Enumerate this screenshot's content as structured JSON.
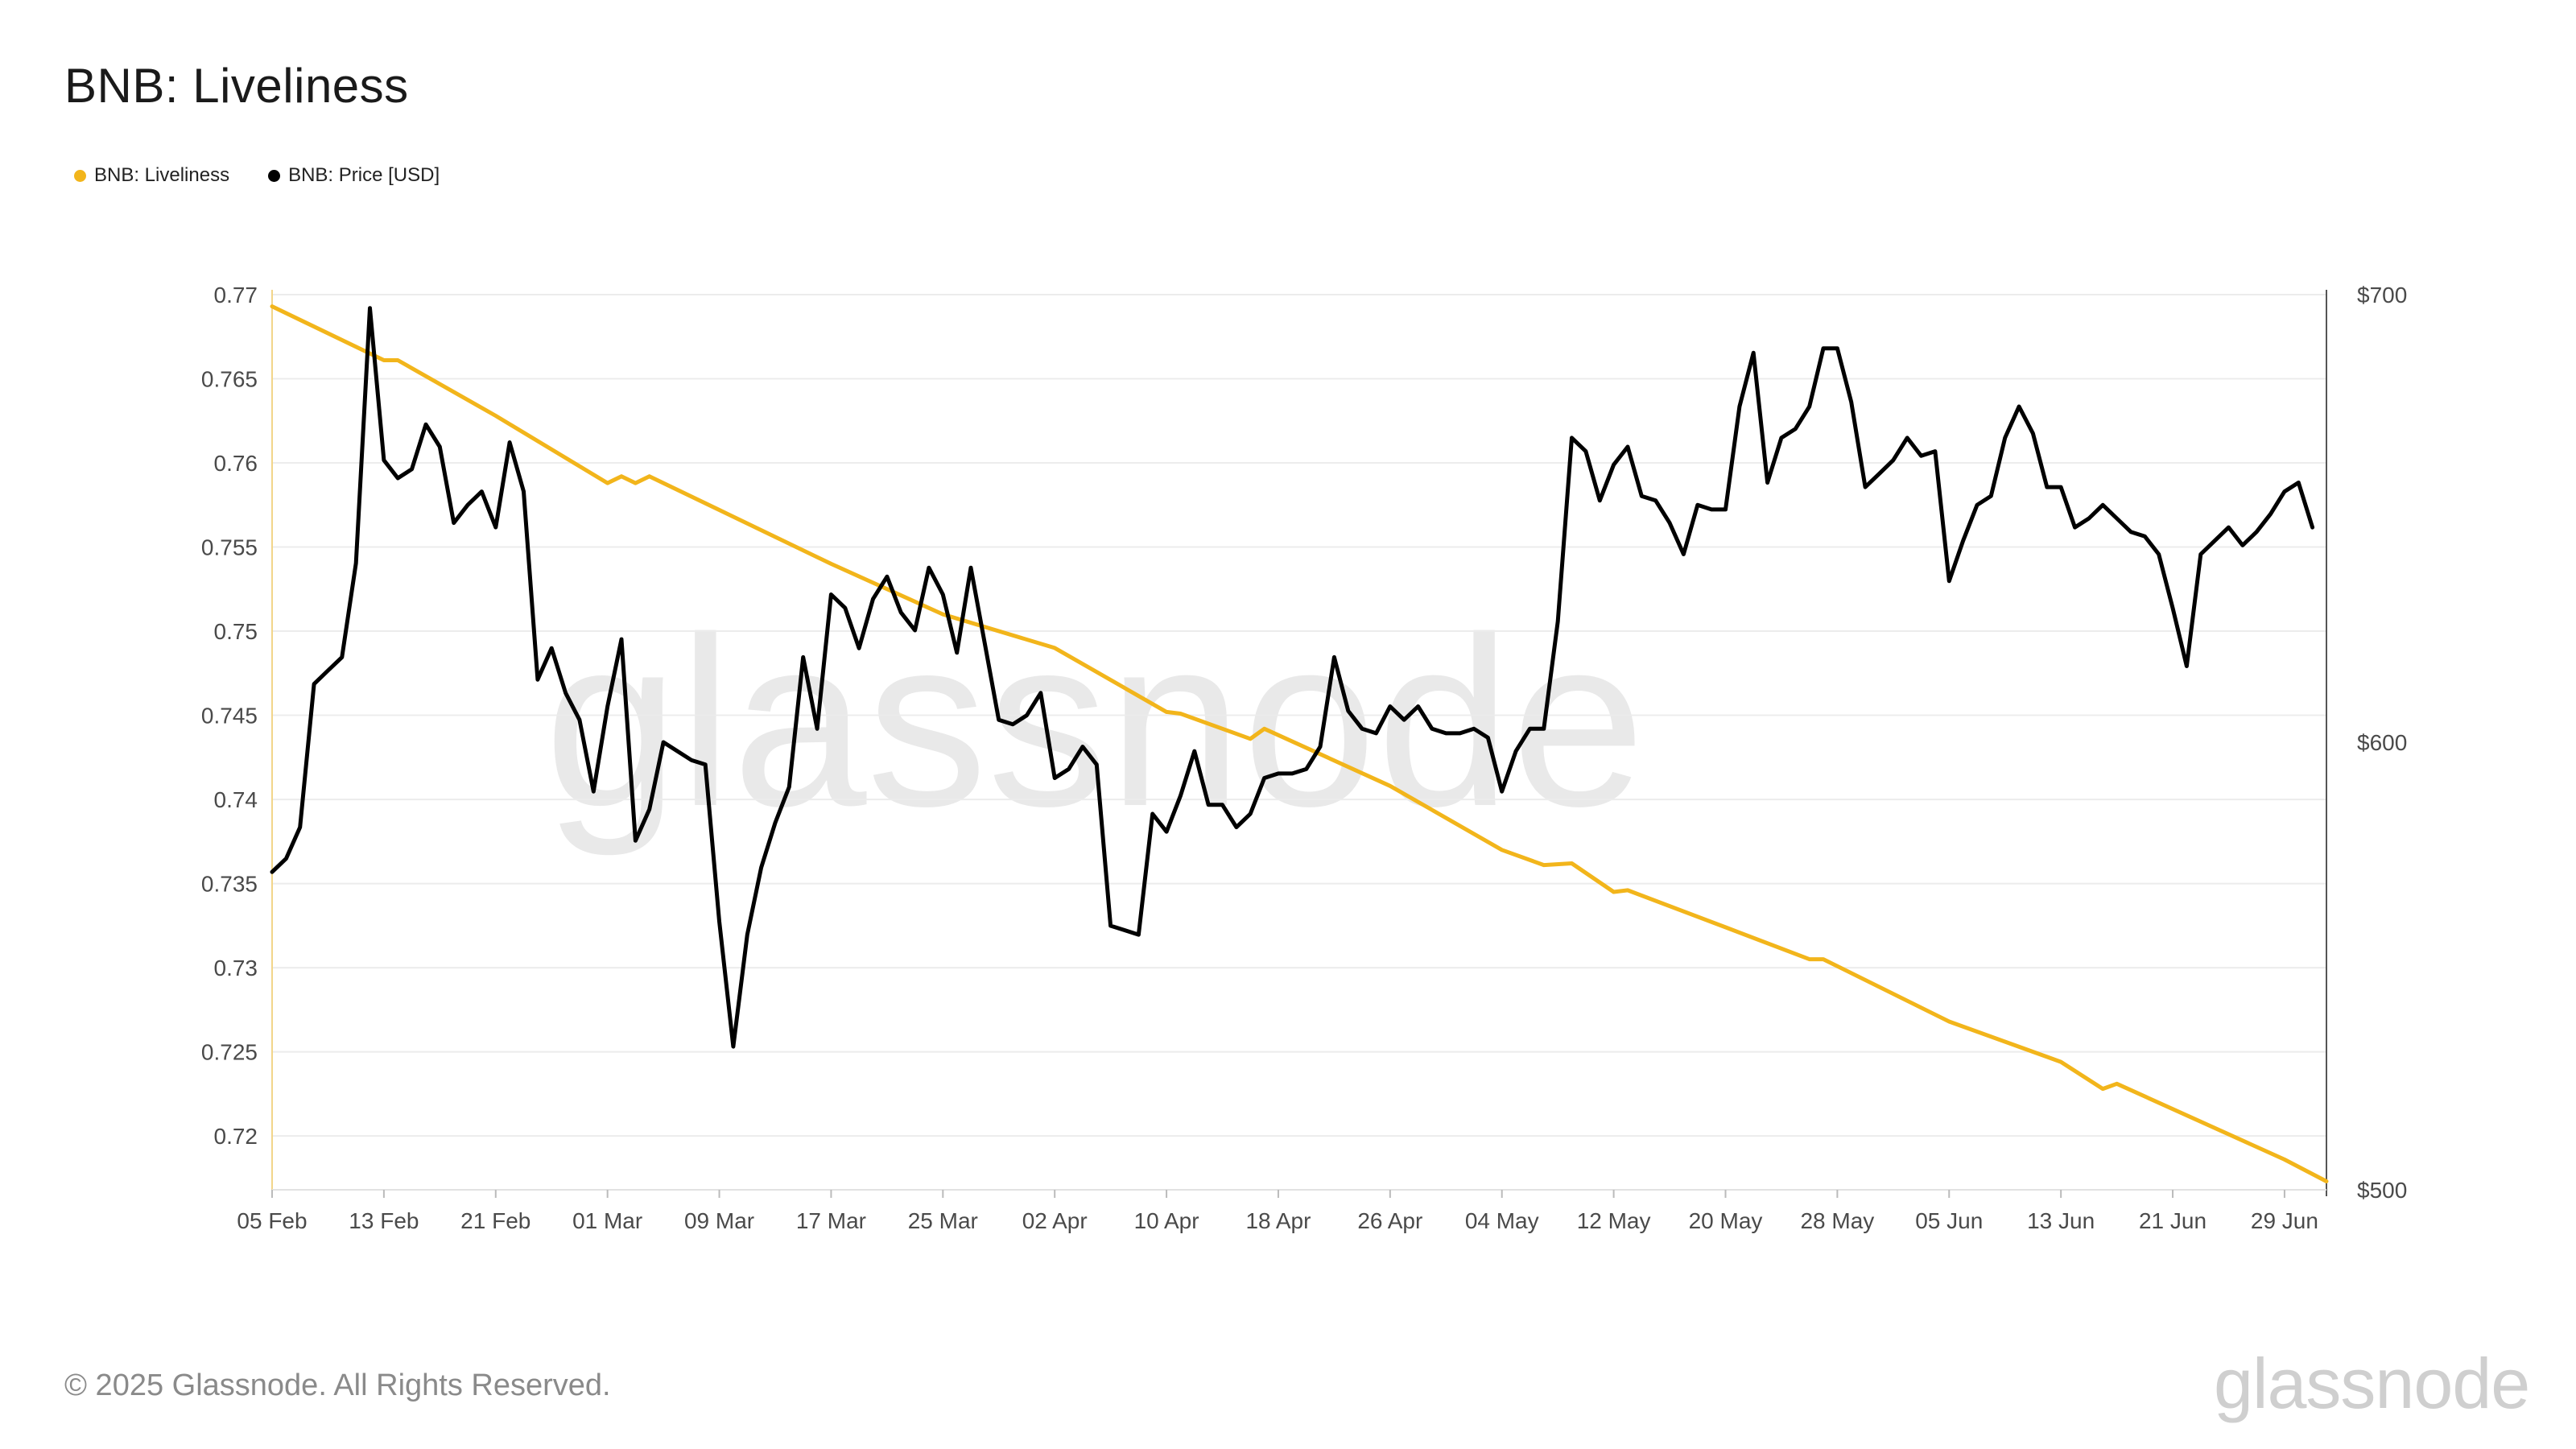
{
  "chart_data": {
    "type": "line",
    "title": "BNB: Liveliness",
    "legend": [
      "BNB: Liveliness",
      "BNB: Price [USD]"
    ],
    "colors": {
      "liveliness": "#f2b51b",
      "price": "#000000",
      "grid": "#ececec",
      "axis_text": "#4a4a4a"
    },
    "x_tick_labels": [
      "05 Feb",
      "13 Feb",
      "21 Feb",
      "01 Mar",
      "09 Mar",
      "17 Mar",
      "25 Mar",
      "02 Apr",
      "10 Apr",
      "18 Apr",
      "26 Apr",
      "04 May",
      "12 May",
      "20 May",
      "28 May",
      "05 Jun",
      "13 Jun",
      "21 Jun",
      "29 Jun"
    ],
    "x_range": [
      "2025-02-05",
      "2025-07-02"
    ],
    "y_left": {
      "ticks": [
        "0.77",
        "0.765",
        "0.76",
        "0.755",
        "0.75",
        "0.745",
        "0.74",
        "0.735",
        "0.73",
        "0.725",
        "0.72"
      ],
      "range": [
        0.7168,
        0.77
      ]
    },
    "y_right": {
      "ticks": [
        "$700",
        "$600",
        "$500"
      ],
      "range": [
        500,
        700
      ]
    },
    "grid": true,
    "legend_placement": "top-left",
    "series": [
      {
        "name": "BNB: Liveliness",
        "axis": "left",
        "points": [
          [
            "2025-02-05",
            0.7693
          ],
          [
            "2025-02-13",
            0.7661
          ],
          [
            "2025-02-14",
            0.7661
          ],
          [
            "2025-02-21",
            0.7628
          ],
          [
            "2025-03-01",
            0.7588
          ],
          [
            "2025-03-02",
            0.7592
          ],
          [
            "2025-03-03",
            0.7588
          ],
          [
            "2025-03-04",
            0.7592
          ],
          [
            "2025-03-17",
            0.754
          ],
          [
            "2025-03-25",
            0.751
          ],
          [
            "2025-04-02",
            0.749
          ],
          [
            "2025-04-10",
            0.7452
          ],
          [
            "2025-04-11",
            0.7451
          ],
          [
            "2025-04-16",
            0.7436
          ],
          [
            "2025-04-17",
            0.7442
          ],
          [
            "2025-04-26",
            0.7408
          ],
          [
            "2025-05-04",
            0.737
          ],
          [
            "2025-05-07",
            0.7361
          ],
          [
            "2025-05-09",
            0.7362
          ],
          [
            "2025-05-12",
            0.7345
          ],
          [
            "2025-05-13",
            0.7346
          ],
          [
            "2025-05-20",
            0.7324
          ],
          [
            "2025-05-26",
            0.7305
          ],
          [
            "2025-05-27",
            0.7305
          ],
          [
            "2025-06-05",
            0.7268
          ],
          [
            "2025-06-13",
            0.7244
          ],
          [
            "2025-06-16",
            0.7228
          ],
          [
            "2025-06-17",
            0.7231
          ],
          [
            "2025-06-29",
            0.7186
          ],
          [
            "2025-07-02",
            0.7173
          ]
        ]
      },
      {
        "name": "BNB: Price [USD]",
        "axis": "right",
        "points": [
          [
            "2025-02-05",
            571
          ],
          [
            "2025-02-06",
            574
          ],
          [
            "2025-02-07",
            581
          ],
          [
            "2025-02-08",
            613
          ],
          [
            "2025-02-09",
            616
          ],
          [
            "2025-02-10",
            619
          ],
          [
            "2025-02-11",
            640
          ],
          [
            "2025-02-12",
            697
          ],
          [
            "2025-02-13",
            663
          ],
          [
            "2025-02-14",
            659
          ],
          [
            "2025-02-15",
            661
          ],
          [
            "2025-02-16",
            671
          ],
          [
            "2025-02-17",
            666
          ],
          [
            "2025-02-18",
            649
          ],
          [
            "2025-02-19",
            653
          ],
          [
            "2025-02-20",
            656
          ],
          [
            "2025-02-21",
            648
          ],
          [
            "2025-02-22",
            667
          ],
          [
            "2025-02-23",
            656
          ],
          [
            "2025-02-24",
            614
          ],
          [
            "2025-02-25",
            621
          ],
          [
            "2025-02-26",
            611
          ],
          [
            "2025-02-27",
            605
          ],
          [
            "2025-02-28",
            589
          ],
          [
            "2025-03-01",
            608
          ],
          [
            "2025-03-02",
            623
          ],
          [
            "2025-03-03",
            578
          ],
          [
            "2025-03-04",
            585
          ],
          [
            "2025-03-05",
            600
          ],
          [
            "2025-03-06",
            598
          ],
          [
            "2025-03-07",
            596
          ],
          [
            "2025-03-08",
            595
          ],
          [
            "2025-03-09",
            560
          ],
          [
            "2025-03-10",
            532
          ],
          [
            "2025-03-11",
            557
          ],
          [
            "2025-03-12",
            572
          ],
          [
            "2025-03-13",
            582
          ],
          [
            "2025-03-14",
            590
          ],
          [
            "2025-03-15",
            619
          ],
          [
            "2025-03-16",
            603
          ],
          [
            "2025-03-17",
            633
          ],
          [
            "2025-03-18",
            630
          ],
          [
            "2025-03-19",
            621
          ],
          [
            "2025-03-20",
            632
          ],
          [
            "2025-03-21",
            637
          ],
          [
            "2025-03-22",
            629
          ],
          [
            "2025-03-23",
            625
          ],
          [
            "2025-03-24",
            639
          ],
          [
            "2025-03-25",
            633
          ],
          [
            "2025-03-26",
            620
          ],
          [
            "2025-03-27",
            639
          ],
          [
            "2025-03-28",
            622
          ],
          [
            "2025-03-29",
            605
          ],
          [
            "2025-03-30",
            604
          ],
          [
            "2025-03-31",
            606
          ],
          [
            "2025-04-01",
            611
          ],
          [
            "2025-04-02",
            592
          ],
          [
            "2025-04-03",
            594
          ],
          [
            "2025-04-04",
            599
          ],
          [
            "2025-04-05",
            595
          ],
          [
            "2025-04-06",
            559
          ],
          [
            "2025-04-07",
            558
          ],
          [
            "2025-04-08",
            557
          ],
          [
            "2025-04-09",
            584
          ],
          [
            "2025-04-10",
            580
          ],
          [
            "2025-04-11",
            588
          ],
          [
            "2025-04-12",
            598
          ],
          [
            "2025-04-13",
            586
          ],
          [
            "2025-04-14",
            586
          ],
          [
            "2025-04-15",
            581
          ],
          [
            "2025-04-16",
            584
          ],
          [
            "2025-04-17",
            592
          ],
          [
            "2025-04-18",
            593
          ],
          [
            "2025-04-19",
            593
          ],
          [
            "2025-04-20",
            594
          ],
          [
            "2025-04-21",
            599
          ],
          [
            "2025-04-22",
            619
          ],
          [
            "2025-04-23",
            607
          ],
          [
            "2025-04-24",
            603
          ],
          [
            "2025-04-25",
            602
          ],
          [
            "2025-04-26",
            608
          ],
          [
            "2025-04-27",
            605
          ],
          [
            "2025-04-28",
            608
          ],
          [
            "2025-04-29",
            603
          ],
          [
            "2025-04-30",
            602
          ],
          [
            "2025-05-01",
            602
          ],
          [
            "2025-05-02",
            603
          ],
          [
            "2025-05-03",
            601
          ],
          [
            "2025-05-04",
            589
          ],
          [
            "2025-05-05",
            598
          ],
          [
            "2025-05-06",
            603
          ],
          [
            "2025-05-07",
            603
          ],
          [
            "2025-05-08",
            627
          ],
          [
            "2025-05-09",
            668
          ],
          [
            "2025-05-10",
            665
          ],
          [
            "2025-05-11",
            654
          ],
          [
            "2025-05-12",
            662
          ],
          [
            "2025-05-13",
            666
          ],
          [
            "2025-05-14",
            655
          ],
          [
            "2025-05-15",
            654
          ],
          [
            "2025-05-16",
            649
          ],
          [
            "2025-05-17",
            642
          ],
          [
            "2025-05-18",
            653
          ],
          [
            "2025-05-19",
            652
          ],
          [
            "2025-05-20",
            652
          ],
          [
            "2025-05-21",
            675
          ],
          [
            "2025-05-22",
            687
          ],
          [
            "2025-05-23",
            658
          ],
          [
            "2025-05-24",
            668
          ],
          [
            "2025-05-25",
            670
          ],
          [
            "2025-05-26",
            675
          ],
          [
            "2025-05-27",
            688
          ],
          [
            "2025-05-28",
            688
          ],
          [
            "2025-05-29",
            676
          ],
          [
            "2025-05-30",
            657
          ],
          [
            "2025-05-31",
            660
          ],
          [
            "2025-06-01",
            663
          ],
          [
            "2025-06-02",
            668
          ],
          [
            "2025-06-03",
            664
          ],
          [
            "2025-06-04",
            665
          ],
          [
            "2025-06-05",
            636
          ],
          [
            "2025-06-06",
            645
          ],
          [
            "2025-06-07",
            653
          ],
          [
            "2025-06-08",
            655
          ],
          [
            "2025-06-09",
            668
          ],
          [
            "2025-06-10",
            675
          ],
          [
            "2025-06-11",
            669
          ],
          [
            "2025-06-12",
            657
          ],
          [
            "2025-06-13",
            657
          ],
          [
            "2025-06-14",
            648
          ],
          [
            "2025-06-15",
            650
          ],
          [
            "2025-06-16",
            653
          ],
          [
            "2025-06-17",
            650
          ],
          [
            "2025-06-18",
            647
          ],
          [
            "2025-06-19",
            646
          ],
          [
            "2025-06-20",
            642
          ],
          [
            "2025-06-21",
            630
          ],
          [
            "2025-06-22",
            617
          ],
          [
            "2025-06-23",
            642
          ],
          [
            "2025-06-24",
            645
          ],
          [
            "2025-06-25",
            648
          ],
          [
            "2025-06-26",
            644
          ],
          [
            "2025-06-27",
            647
          ],
          [
            "2025-06-28",
            651
          ],
          [
            "2025-06-29",
            656
          ],
          [
            "2025-06-30",
            658
          ],
          [
            "2025-07-01",
            648
          ]
        ]
      }
    ]
  },
  "watermark": "glassnode",
  "footer": {
    "copyright": "© 2025 Glassnode. All Rights Reserved.",
    "logo": "glassnode"
  }
}
